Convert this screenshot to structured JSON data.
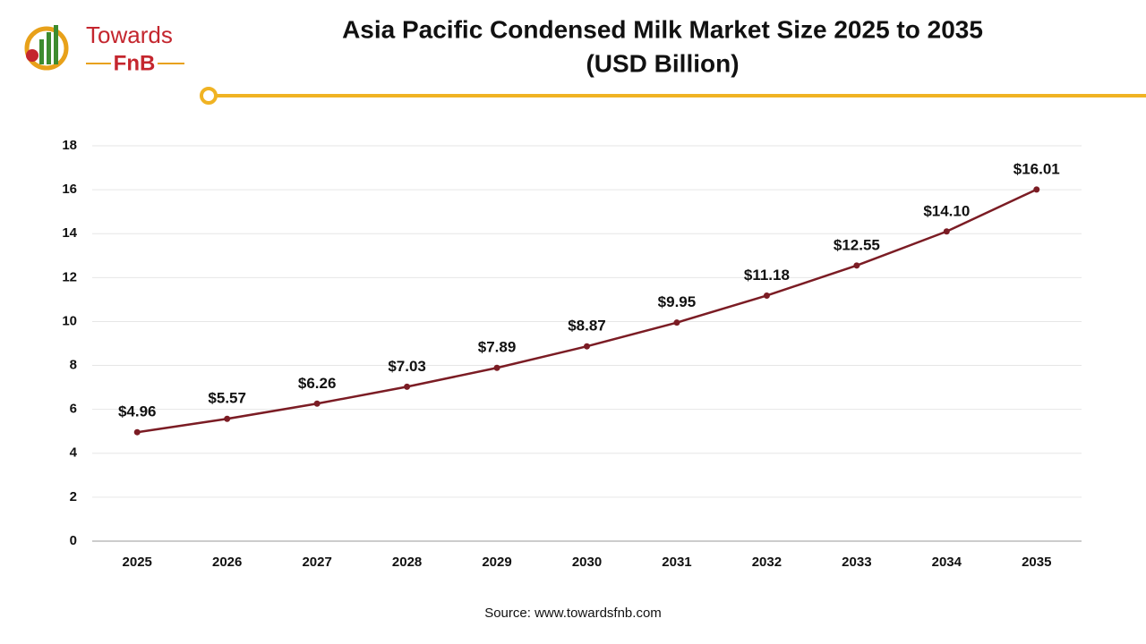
{
  "brand": {
    "name": "Towards",
    "sub": "FnB"
  },
  "chart_data": {
    "type": "line",
    "title": "Asia Pacific Condensed Milk Market Size 2025 to 2035",
    "subtitle": "(USD Billion)",
    "categories": [
      "2025",
      "2026",
      "2027",
      "2028",
      "2029",
      "2030",
      "2031",
      "2032",
      "2033",
      "2034",
      "2035"
    ],
    "values": [
      4.96,
      5.57,
      6.26,
      7.03,
      7.89,
      8.87,
      9.95,
      11.18,
      12.55,
      14.1,
      16.01
    ],
    "value_labels": [
      "$4.96",
      "$5.57",
      "$6.26",
      "$7.03",
      "$7.89",
      "$8.87",
      "$9.95",
      "$11.18",
      "$12.55",
      "$14.10",
      "$16.01"
    ],
    "color": "#7b1c24",
    "ylim": [
      0,
      18
    ],
    "yticks": [
      0,
      2,
      4,
      6,
      8,
      10,
      12,
      14,
      16,
      18
    ],
    "grid": true,
    "source": "Source: www.towardsfnb.com"
  }
}
